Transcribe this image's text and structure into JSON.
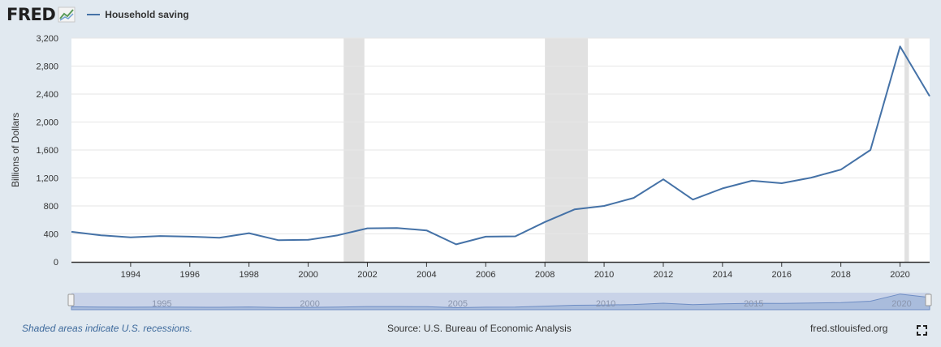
{
  "header": {
    "logo_text": "FRED",
    "logo_icon": "chart-line-icon"
  },
  "footer": {
    "recession_note": "Shaded areas indicate U.S. recessions.",
    "source": "Source: U.S. Bureau of Economic Analysis",
    "site": "fred.stlouisfed.org",
    "fullscreen_icon": "fullscreen-icon"
  },
  "colors": {
    "series": "#4572a7",
    "recession": "#e1e1e1",
    "navigator_fill": "#c2cde3",
    "background": "#e1e9f0"
  },
  "chart_data": {
    "type": "line",
    "ylabel": "Billions of Dollars",
    "ylim": [
      0,
      3200
    ],
    "yticks": [
      "0",
      "400",
      "800",
      "1,200",
      "1,600",
      "2,000",
      "2,400",
      "2,800",
      "3,200"
    ],
    "xlim": [
      1992,
      2021
    ],
    "xticks": [
      "1994",
      "1996",
      "1998",
      "2000",
      "2002",
      "2004",
      "2006",
      "2008",
      "2010",
      "2012",
      "2014",
      "2016",
      "2018",
      "2020"
    ],
    "navigator_ticks": [
      "1995",
      "2000",
      "2005",
      "2010",
      "2015",
      "2020"
    ],
    "grid": true,
    "legend_position": "top-left",
    "recessions": [
      [
        2001.2,
        2001.9
      ],
      [
        2008.0,
        2009.45
      ],
      [
        2020.15,
        2020.3
      ]
    ],
    "series": [
      {
        "name": "Household saving",
        "x": [
          1992,
          1993,
          1994,
          1995,
          1996,
          1997,
          1998,
          1999,
          2000,
          2001,
          2002,
          2003,
          2004,
          2005,
          2006,
          2007,
          2008,
          2009,
          2010,
          2011,
          2012,
          2013,
          2014,
          2015,
          2016,
          2017,
          2018,
          2019,
          2020,
          2021
        ],
        "values": [
          430,
          380,
          350,
          370,
          360,
          345,
          410,
          310,
          315,
          380,
          480,
          485,
          450,
          250,
          360,
          365,
          570,
          750,
          800,
          915,
          1180,
          890,
          1050,
          1160,
          1125,
          1205,
          1320,
          1600,
          3080,
          2370
        ]
      }
    ]
  }
}
